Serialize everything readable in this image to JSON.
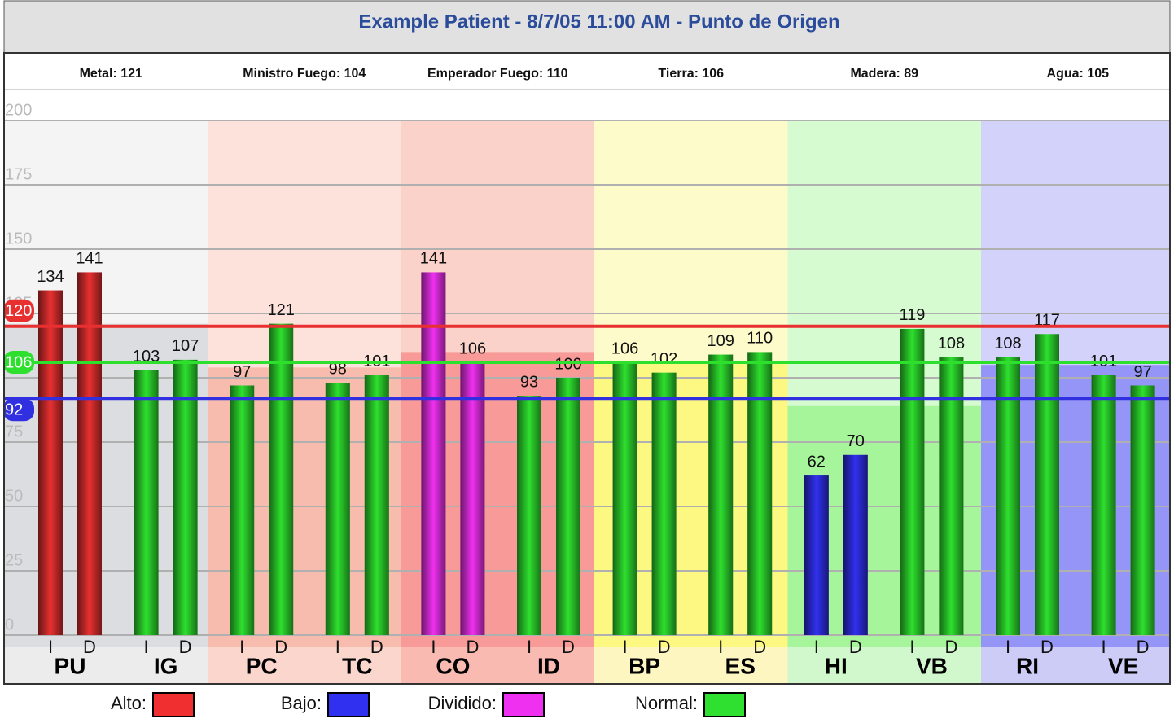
{
  "chart_data": {
    "type": "bar",
    "title": "Example Patient - 8/7/05 11:00 AM - Punto de Origen",
    "elements": [
      {
        "label": "Metal: 121",
        "value": 121,
        "color": "#f4f4f5",
        "dark": "#dcdde1",
        "foot": "#ececec"
      },
      {
        "label": "Ministro Fuego: 104",
        "value": 104,
        "color": "#fde1db",
        "dark": "#f8bcaf",
        "foot": "#fad6cd"
      },
      {
        "label": "Emperador Fuego: 110",
        "value": 110,
        "color": "#fbd2c9",
        "dark": "#f79a98",
        "foot": "#f9bab1"
      },
      {
        "label": "Tierra: 106",
        "value": 106,
        "color": "#fdfbc9",
        "dark": "#fdf882",
        "foot": "#fdf6c0"
      },
      {
        "label": "Madera: 89",
        "value": 89,
        "color": "#d6fbd0",
        "dark": "#a7f59b",
        "foot": "#d0f8cc"
      },
      {
        "label": "Agua: 105",
        "value": 105,
        "color": "#d2d2fb",
        "dark": "#9595f7",
        "foot": "#ccccf6"
      }
    ],
    "categories": [
      "PU",
      "IG",
      "PC",
      "TC",
      "CO",
      "ID",
      "BP",
      "ES",
      "HI",
      "VB",
      "RI",
      "VE"
    ],
    "series": [
      {
        "name": "I",
        "values": [
          134,
          103,
          97,
          98,
          141,
          93,
          106,
          109,
          62,
          119,
          108,
          101
        ],
        "colors": [
          "#e83030",
          "#2ee02e",
          "#2ee02e",
          "#2ee02e",
          "#f030f0",
          "#2ee02e",
          "#2ee02e",
          "#2ee02e",
          "#3030f0",
          "#2ee02e",
          "#2ee02e",
          "#2ee02e"
        ]
      },
      {
        "name": "D",
        "values": [
          141,
          107,
          121,
          101,
          106,
          100,
          102,
          110,
          70,
          108,
          117,
          97
        ],
        "colors": [
          "#e83030",
          "#2ee02e",
          "#2ee02e",
          "#2ee02e",
          "#f030f0",
          "#2ee02e",
          "#2ee02e",
          "#2ee02e",
          "#3030f0",
          "#2ee02e",
          "#2ee02e",
          "#2ee02e"
        ]
      }
    ],
    "ylim": [
      0,
      200
    ],
    "yticks": [
      0,
      25,
      50,
      75,
      100,
      125,
      150,
      175,
      200
    ],
    "grid": true,
    "thresholds": [
      {
        "value": 120,
        "color": "#e83030"
      },
      {
        "value": 106,
        "color": "#2ee02e"
      },
      {
        "value": 92,
        "color": "#3030e0"
      }
    ],
    "legend": [
      {
        "label": "Alto:",
        "color": "#f03030"
      },
      {
        "label": "Bajo:",
        "color": "#3030f0"
      },
      {
        "label": "Dividido:",
        "color": "#f030f0"
      },
      {
        "label": "Normal:",
        "color": "#30e030"
      }
    ]
  }
}
